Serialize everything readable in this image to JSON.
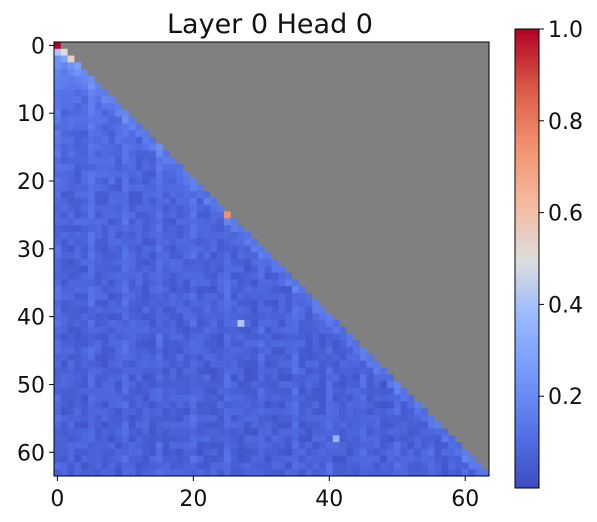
{
  "chart_data": {
    "type": "heatmap",
    "title": "Layer 0 Head 0",
    "xlabel": "",
    "ylabel": "",
    "rows": 64,
    "cols": 64,
    "mask": "upper-triangle (j > i) shown in gray",
    "mask_color": "#808080",
    "x_ticks": [
      0,
      20,
      40,
      60
    ],
    "y_ticks": [
      0,
      10,
      20,
      30,
      40,
      50,
      60
    ],
    "colormap": "coolwarm",
    "colorbar": {
      "range": [
        0.0,
        1.0
      ],
      "ticks": [
        0.2,
        0.4,
        0.6,
        0.8,
        1.0
      ],
      "tick_labels": [
        "0.2",
        "0.4",
        "0.6",
        "0.8",
        "1.0"
      ]
    },
    "highlights": [
      {
        "row": 0,
        "col": 0,
        "value": 1.0
      },
      {
        "row": 1,
        "col": 1,
        "value": 0.5
      },
      {
        "row": 2,
        "col": 2,
        "value": 0.55
      },
      {
        "row": 25,
        "col": 25,
        "value": 0.75
      },
      {
        "row": 41,
        "col": 27,
        "value": 0.42
      },
      {
        "row": 58,
        "col": 41,
        "value": 0.35
      }
    ],
    "notes": "Lower-triangular causal attention; most weights low (blue); diagonal and first columns slightly brighter."
  }
}
